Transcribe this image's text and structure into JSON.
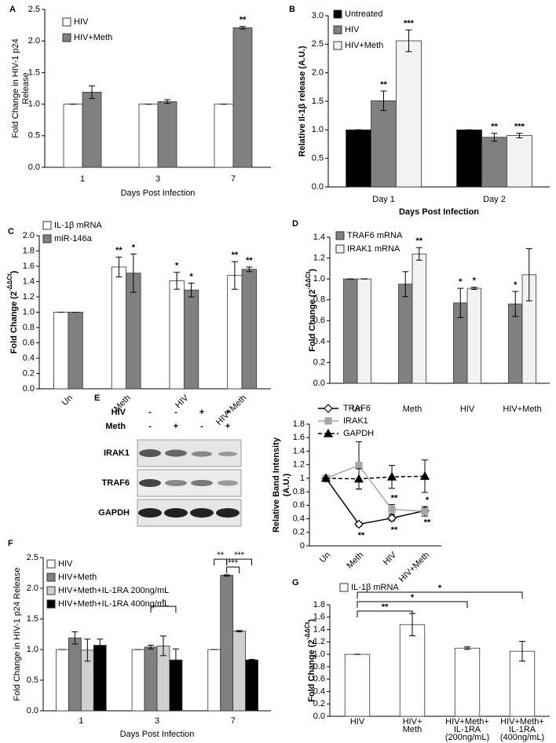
{
  "chart_data": [
    {
      "type": "bar",
      "panel": "A",
      "ylabel": [
        "Fold Change in HIV-1 p24",
        "Release"
      ],
      "xlabel": "Days Post Infection",
      "categories": [
        "1",
        "3",
        "7"
      ],
      "series": [
        {
          "name": "HIV",
          "color": "#ffffff",
          "values": [
            1,
            1,
            1
          ],
          "errors": [
            0,
            0,
            0
          ],
          "annotations": [
            null,
            null,
            null
          ]
        },
        {
          "name": "HIV+Meth",
          "color": "#808080",
          "values": [
            1.19,
            1.04,
            2.21
          ],
          "errors": [
            0.1,
            0.03,
            0.02
          ],
          "annotations": [
            null,
            null,
            "**"
          ]
        }
      ],
      "ylim": [
        0,
        2.5
      ],
      "yticks": [
        {
          "value": 0,
          "label": "0.0"
        },
        0.5,
        {
          "value": 1,
          "label": "1.0"
        },
        1.5,
        {
          "value": 2,
          "label": "2.0"
        },
        2.5
      ],
      "legend": "upper left"
    },
    {
      "type": "bar",
      "panel": "B",
      "ylabel": "Relative Il-1β release (A.U.)",
      "xlabel": "Days Post Infection",
      "categories": [
        "Day 1",
        "Day 2"
      ],
      "series": [
        {
          "name": "Untreated",
          "color": "#000000",
          "values": [
            1,
            1
          ],
          "errors": [
            0,
            0
          ],
          "annotations": [
            null,
            null
          ]
        },
        {
          "name": "HIV",
          "color": "#808080",
          "values": [
            1.51,
            0.87
          ],
          "errors": [
            0.17,
            0.07
          ],
          "annotations": [
            "**",
            "**"
          ]
        },
        {
          "name": "HIV+Meth",
          "color": "#f2f2f2",
          "values": [
            2.56,
            0.9
          ],
          "errors": [
            0.19,
            0.04
          ],
          "annotations": [
            "***",
            "***"
          ]
        }
      ],
      "ylim": [
        0,
        3
      ],
      "yticks": [
        {
          "value": 0,
          "label": "0.0"
        },
        0.5,
        {
          "value": 1,
          "label": "1.0"
        },
        1.5,
        {
          "value": 2,
          "label": "2.0"
        },
        2.5,
        {
          "value": 3,
          "label": "3.0"
        }
      ],
      "legend": "upper left"
    },
    {
      "type": "bar",
      "panel": "C",
      "ylabel": {
        "text": "Fold Change (2",
        "superscript": "-ΔΔCt",
        "suffix": ")"
      },
      "categories": [
        "Un",
        "Meth",
        "HIV",
        "HIV+Meth"
      ],
      "series": [
        {
          "name": "IL-1β mRNA",
          "color": "#ffffff",
          "values": [
            1,
            1.59,
            1.41,
            1.48
          ],
          "errors": [
            0,
            0.13,
            0.11,
            0.18
          ],
          "annotations": [
            null,
            "**",
            "*",
            "**"
          ]
        },
        {
          "name": "miR-146a",
          "color": "#808080",
          "values": [
            1,
            1.51,
            1.29,
            1.56
          ],
          "errors": [
            0,
            0.25,
            0.09,
            0.03
          ],
          "annotations": [
            null,
            "*",
            "*",
            "**"
          ]
        }
      ],
      "ylim": [
        0,
        2
      ],
      "yticks": [
        {
          "value": 0,
          "label": "0.0"
        },
        0.2,
        0.4,
        0.6,
        0.8,
        {
          "value": 1,
          "label": "1.0"
        },
        1.2,
        1.4,
        1.6,
        1.8,
        {
          "value": 2,
          "label": "2.0"
        }
      ],
      "legend": "upper left"
    },
    {
      "type": "bar",
      "panel": "D",
      "ylabel": {
        "text": "Fold Change (2",
        "superscript": "-ΔΔCt",
        "suffix": ")"
      },
      "categories": [
        "Un",
        "Meth",
        "HIV",
        "HIV+Meth"
      ],
      "series": [
        {
          "name": "TRAF6 mRNA",
          "color": "#808080",
          "values": [
            1,
            0.95,
            0.77,
            0.76
          ],
          "errors": [
            0,
            0.12,
            0.14,
            0.12
          ],
          "annotations": [
            null,
            null,
            "*",
            "*"
          ]
        },
        {
          "name": "IRAK1 mRNA",
          "color": "#f2f2f2",
          "values": [
            1,
            1.24,
            0.91,
            1.04
          ],
          "errors": [
            0,
            0.06,
            0.01,
            0.25
          ],
          "annotations": [
            null,
            "**",
            "*",
            null
          ]
        }
      ],
      "ylim": [
        0,
        1.4
      ],
      "yticks": [
        {
          "value": 0,
          "label": "0.0"
        },
        0.2,
        0.4,
        0.6,
        0.8,
        {
          "value": 1,
          "label": "1.0"
        },
        1.2,
        1.4
      ],
      "legend": "upper left"
    },
    {
      "type": "line",
      "ylabel": [
        "Relative Band Intensity",
        "(A.U.)"
      ],
      "categories": [
        "Un",
        "Meth",
        "HIV",
        "HIV+Meth"
      ],
      "series": [
        {
          "name": "TRAF6",
          "color": "#000000",
          "marker": "diamond",
          "dashed": false,
          "values": [
            1,
            0.32,
            0.41,
            0.52
          ],
          "errors": [
            0,
            0.03,
            0.04,
            0.04
          ],
          "annotations": [
            null,
            "**",
            "**",
            "**"
          ]
        },
        {
          "name": "IRAK1",
          "color": "#a6a6a6",
          "marker": "square",
          "dashed": false,
          "values": [
            1,
            1.19,
            0.54,
            0.51
          ],
          "errors": [
            0,
            0.35,
            0.07,
            0.07
          ],
          "annotations": [
            null,
            null,
            "**",
            "*"
          ]
        },
        {
          "name": "GAPDH",
          "color": "#000000",
          "marker": "triangle",
          "dashed": true,
          "values": [
            1,
            0.99,
            1.02,
            1.03
          ],
          "errors": [
            0,
            0.15,
            0.17,
            0.24
          ],
          "annotations": [
            null,
            null,
            null,
            null
          ]
        }
      ],
      "ylim": [
        0,
        1.8
      ],
      "yticks": [
        0,
        0.2,
        0.4,
        0.6,
        0.8,
        1,
        1.2,
        1.4,
        1.6,
        1.8
      ],
      "legend": "upper left"
    },
    {
      "type": "bar",
      "panel": "F",
      "ylabel": "Fold Change in HIV-1 p24 Release",
      "xlabel": "Days Post Infection",
      "categories": [
        "1",
        "3",
        "7"
      ],
      "series": [
        {
          "name": "HIV",
          "color": "#ffffff",
          "values": [
            1,
            1,
            1
          ],
          "errors": [
            0,
            0,
            0
          ],
          "annotations": [
            null,
            null,
            null
          ]
        },
        {
          "name": "HIV+Meth",
          "color": "#808080",
          "values": [
            1.19,
            1.04,
            2.21
          ],
          "errors": [
            0.1,
            0.03,
            0.01
          ],
          "annotations": [
            null,
            null,
            null
          ]
        },
        {
          "name": "HIV+Meth+IL-1RA 200ng/mL",
          "color": "#d0d0d0",
          "values": [
            0.99,
            1.06,
            1.3
          ],
          "errors": [
            0.18,
            0.16,
            0.01
          ],
          "annotations": [
            null,
            null,
            null
          ]
        },
        {
          "name": "HIV+Meth+IL-1RA 400ng/mL",
          "color": "#000000",
          "values": [
            1.07,
            0.83,
            0.83
          ],
          "errors": [
            0.1,
            0.18,
            0.01
          ],
          "annotations": [
            null,
            null,
            null
          ]
        }
      ],
      "brackets": [
        "*",
        "**",
        "***",
        "***"
      ],
      "ylim": [
        0,
        2.5
      ],
      "yticks": [
        {
          "value": 0,
          "label": "0.0"
        },
        0.5,
        {
          "value": 1,
          "label": "1.0"
        },
        1.5,
        {
          "value": 2,
          "label": "2.0"
        },
        2.5
      ],
      "legend": "upper left"
    },
    {
      "type": "bar",
      "panel": "G",
      "ylabel": {
        "text": "Fold Change (2",
        "superscript": "-ΔΔCt",
        "suffix": ")"
      },
      "categories": [
        [
          "HIV"
        ],
        [
          "HIV+",
          "Meth"
        ],
        [
          "HIV+Meth+",
          "IL-1RA",
          "(200ng/mL)"
        ],
        [
          "HIV+Meth+",
          "IL-1RA",
          "(400ng/mL)"
        ]
      ],
      "series": [
        {
          "name": "IL-1β mRNA",
          "color": "#ffffff",
          "values": [
            1,
            1.48,
            1.1,
            1.05
          ],
          "errors": [
            0,
            0.18,
            0.02,
            0.16
          ],
          "annotations": [
            null,
            null,
            null,
            null
          ]
        }
      ],
      "brackets": [
        "**",
        "*",
        "*"
      ],
      "ylim": [
        0,
        1.8
      ],
      "yticks": [
        {
          "value": 0,
          "label": "0.0"
        },
        0.2,
        0.4,
        0.6,
        0.8,
        {
          "value": 1,
          "label": "1.0"
        },
        1.2,
        1.4,
        1.6,
        1.8
      ],
      "legend": "upper left"
    }
  ],
  "blot": {
    "panel": "E",
    "conditions": [
      {
        "name": "HIV",
        "signs": [
          "-",
          "-",
          "+",
          "+"
        ]
      },
      {
        "name": "Meth",
        "signs": [
          "-",
          "+",
          "-",
          "+"
        ]
      }
    ],
    "rows": [
      "IRAK1",
      "TRAF6",
      "GAPDH"
    ]
  }
}
